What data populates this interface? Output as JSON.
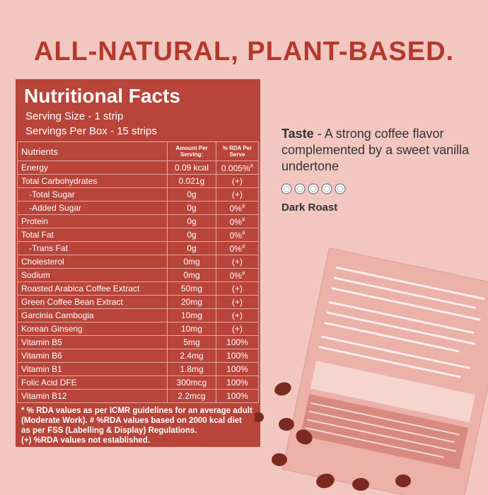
{
  "headline": "ALL-NATURAL, PLANT-BASED.",
  "panel": {
    "title": "Nutritional Facts",
    "serving_size": "Serving Size - 1 strip",
    "servings_per_box": "Servings Per Box - 15 strips",
    "table": {
      "headers": [
        "Nutrients",
        "Amount Per Serving:",
        "% RDA Per Serve"
      ],
      "rows": [
        {
          "nutrient": "Energy",
          "amount": "0.09 kcal",
          "rda": "0.005%",
          "mark": "#"
        },
        {
          "nutrient": "Total Carbohydrates",
          "amount": "0.021g",
          "rda": "(+)"
        },
        {
          "nutrient": "-Total Sugar",
          "amount": "0g",
          "rda": "(+)"
        },
        {
          "nutrient": "-Added Sugar",
          "amount": "0g",
          "rda": "0%",
          "mark": "#"
        },
        {
          "nutrient": "Protein",
          "amount": "0g",
          "rda": "0%",
          "mark": "#"
        },
        {
          "nutrient": "Total Fat",
          "amount": "0g",
          "rda": "0%",
          "mark": "#"
        },
        {
          "nutrient": "-Trans Fat",
          "amount": "0g",
          "rda": "0%",
          "mark": "#"
        },
        {
          "nutrient": "Cholesterol",
          "amount": "0mg",
          "rda": "(+)"
        },
        {
          "nutrient": "Sodium",
          "amount": "0mg",
          "rda": "0%",
          "mark": "#"
        },
        {
          "nutrient": "Roasted Arabica Coffee Extract",
          "amount": "50mg",
          "rda": "(+)"
        },
        {
          "nutrient": "Green Coffee Bean Extract",
          "amount": "20mg",
          "rda": "(+)"
        },
        {
          "nutrient": "Garcinia Cambogia",
          "amount": "10mg",
          "rda": "(+)"
        },
        {
          "nutrient": "Korean Ginseng",
          "amount": "10mg",
          "rda": "(+)"
        },
        {
          "nutrient": "Vitamin B5",
          "amount": "5mg",
          "rda": "100%"
        },
        {
          "nutrient": "Vitamin B6",
          "amount": "2.4mg",
          "rda": "100%"
        },
        {
          "nutrient": "Vitamin B1",
          "amount": "1.8mg",
          "rda": "100%"
        },
        {
          "nutrient": "Folic Acid DFE",
          "amount": "300mcg",
          "rda": "100%"
        },
        {
          "nutrient": "Vitamin B12",
          "amount": "2.2mcg",
          "rda": "100%"
        }
      ]
    },
    "notes": [
      "* % RDA values as per ICMR guidelines for an average adult",
      "(Moderate Work). # %RDA values based on 2000 kcal diet",
      "as per FSS (Labelling & Display) Regulations.",
      "(+) %RDA values not established."
    ]
  },
  "taste": {
    "label": "Taste",
    "text": " - A strong coffee flavor complemented by a sweet vanilla undertone"
  },
  "roast": "Dark Roast"
}
